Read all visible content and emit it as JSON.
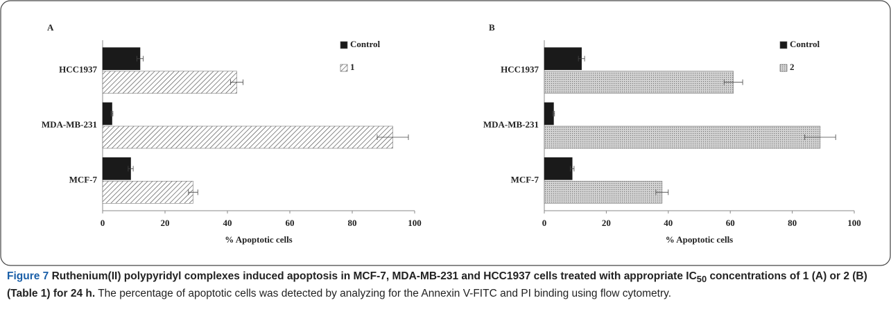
{
  "chart_data": [
    {
      "type": "bar",
      "orientation": "horizontal",
      "panel": "A",
      "xlabel": "% Apoptotic cells",
      "categories": [
        "HCC1937",
        "MDA-MB-231",
        "MCF-7"
      ],
      "series": [
        {
          "name": "Control",
          "color": "#1a1a1a",
          "values": [
            12,
            3,
            9
          ],
          "errors": [
            1,
            0.3,
            0.8
          ]
        },
        {
          "name": "1",
          "color": "#ffffff",
          "pattern": "hatch",
          "values": [
            43,
            93,
            29
          ],
          "errors": [
            2,
            5,
            1.5
          ]
        }
      ],
      "xlim": [
        0,
        100
      ],
      "xticks": [
        0,
        20,
        40,
        60,
        80,
        100
      ],
      "legend": "top-right"
    },
    {
      "type": "bar",
      "orientation": "horizontal",
      "panel": "B",
      "xlabel": "%  Apoptotic cells",
      "categories": [
        "HCC1937",
        "MDA-MB-231",
        "MCF-7"
      ],
      "series": [
        {
          "name": "Control",
          "color": "#1a1a1a",
          "values": [
            12,
            3,
            9
          ],
          "errors": [
            1,
            0.3,
            0.6
          ]
        },
        {
          "name": "2",
          "color": "#c8c8c8",
          "pattern": "dots",
          "values": [
            61,
            89,
            38
          ],
          "errors": [
            3,
            5,
            2
          ]
        }
      ],
      "xlim": [
        0,
        100
      ],
      "xticks": [
        0,
        20,
        40,
        60,
        80,
        100
      ],
      "legend": "top-right"
    }
  ],
  "caption": {
    "label": "Figure 7",
    "title_a": "Ruthenium(II) polypyridyl complexes induced apoptosis in MCF-7, MDA-MB-231 and HCC1937 cells treated with appropriate IC",
    "subscript": "50",
    "title_b": "concentrations of 1 (A) or 2 (B) (Table 1) for 24 h.",
    "body": "The percentage of apoptotic cells was detected by analyzing for the Annexin V-FITC and PI binding using flow cytometry."
  }
}
